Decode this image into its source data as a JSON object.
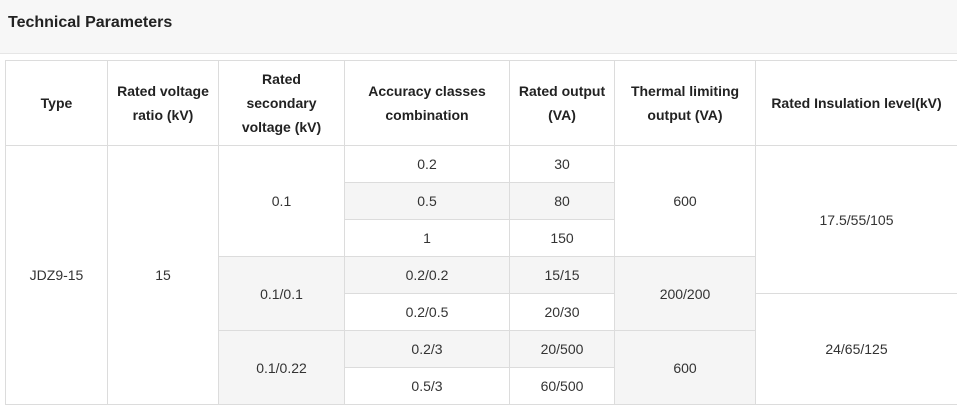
{
  "header": {
    "title": "Technical Parameters"
  },
  "table": {
    "columns": [
      "Type",
      "Rated voltage ratio (kV)",
      "Rated secondary voltage (kV)",
      "Accuracy classes combination",
      "Rated output (VA)",
      "Thermal limiting output (VA)",
      "Rated Insulation level(kV)"
    ],
    "rows": [
      [
        "JDZ9-15",
        "15",
        "0.1",
        "0.2",
        "30",
        "600",
        "17.5/55/105"
      ],
      [
        "0.5",
        "80"
      ],
      [
        "1",
        "150"
      ],
      [
        "0.1/0.1",
        "0.2/0.2",
        "15/15",
        "200/200"
      ],
      [
        "0.2/0.5",
        "20/30",
        "24/65/125"
      ],
      [
        "0.1/0.22",
        "0.2/3",
        "20/500",
        "600"
      ],
      [
        "0.5/3",
        "60/500"
      ]
    ]
  }
}
